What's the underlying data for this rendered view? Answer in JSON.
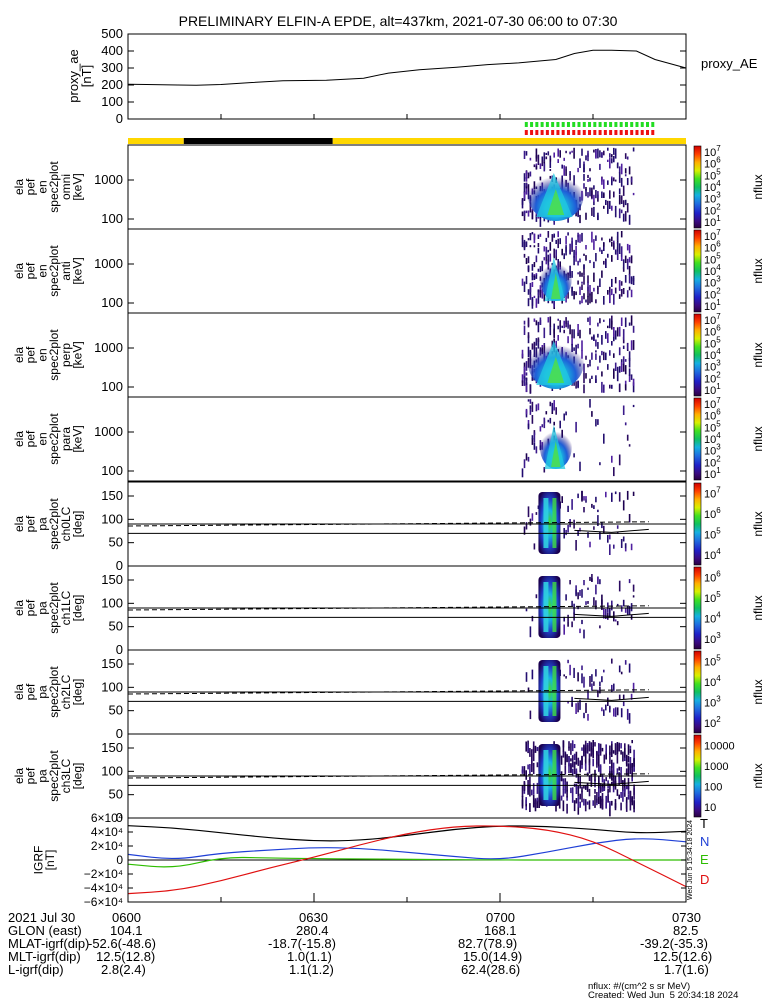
{
  "title": "PRELIMINARY ELFIN-A EPDE, alt=437km, 2021-07-30 06:00 to 07:30",
  "chart_data": [
    {
      "type": "line",
      "name": "proxy_ae panel",
      "ylabel_lines": [
        "proxy_ae",
        "[nT]"
      ],
      "ylim": [
        0,
        500
      ],
      "yticks": [
        "500",
        "400",
        "300",
        "200",
        "100",
        "0"
      ],
      "legend": "proxy_AE",
      "x_minutes": [
        0,
        3,
        8,
        11,
        15,
        20,
        25,
        32,
        38,
        42,
        47,
        53,
        58,
        63,
        69,
        72,
        75,
        78,
        82,
        85,
        90
      ],
      "values": [
        205,
        203,
        200,
        198,
        203,
        215,
        225,
        228,
        240,
        270,
        290,
        305,
        320,
        330,
        350,
        385,
        405,
        405,
        400,
        350,
        300
      ]
    },
    {
      "type": "bar",
      "name": "flag bar",
      "yellow_minutes": [
        [
          0,
          9
        ],
        [
          33,
          90
        ]
      ],
      "black_minutes": [
        [
          9,
          33
        ]
      ],
      "green_ticks_minutes": [
        64,
        84.5
      ],
      "red_ticks_minutes": [
        64,
        84.5
      ]
    },
    {
      "type": "heatmap",
      "name": "energy spectrogram panels",
      "ylabel_lines": [
        [
          "ela",
          "pef",
          "en",
          "spec2plot",
          "omni",
          "[keV]"
        ],
        [
          "ela",
          "pef",
          "en",
          "spec2plot",
          "anti",
          "[keV]"
        ],
        [
          "ela",
          "pef",
          "en",
          "spec2plot",
          "perp",
          "[keV]"
        ],
        [
          "ela",
          "pef",
          "en",
          "spec2plot",
          "para",
          "[keV]"
        ]
      ],
      "yticks": [
        "1000",
        "100"
      ],
      "y_scale": "log",
      "colorbar_label": "nflux",
      "colorbar_exponents": [
        "1",
        "2",
        "3",
        "4",
        "5",
        "6",
        "7"
      ],
      "colorbar_base": "10",
      "data_window_minutes": [
        63.5,
        81.5
      ]
    },
    {
      "type": "heatmap",
      "name": "pitch angle spectrogram panels",
      "ylabel_lines": [
        [
          "ela",
          "pef",
          "pa",
          "spec2plot",
          "ch0LC",
          "[deg]"
        ],
        [
          "ela",
          "pef",
          "pa",
          "spec2plot",
          "ch1LC",
          "[deg]"
        ],
        [
          "ela",
          "pef",
          "pa",
          "spec2plot",
          "ch2LC",
          "[deg]"
        ],
        [
          "ela",
          "pef",
          "pa",
          "spec2plot",
          "ch3LC",
          "[deg]"
        ]
      ],
      "yticks": [
        "150",
        "100",
        "50",
        "0"
      ],
      "ylim": [
        0,
        180
      ],
      "colorbar_label": "nflux",
      "colorbar_ticks": [
        [
          "10^4",
          "10^5",
          "10^6",
          "10^7"
        ],
        [
          "10^3",
          "10^4",
          "10^5",
          "10^6"
        ],
        [
          "10^2",
          "10^3",
          "10^4",
          "10^5"
        ],
        [
          "10",
          "100",
          "1000",
          "10000"
        ]
      ],
      "lc_lines_deg": [
        90,
        70
      ]
    },
    {
      "type": "line",
      "name": "IGRF panel",
      "ylabel_lines": [
        "IGRF",
        "[nT]"
      ],
      "ylim": [
        -60000,
        60000
      ],
      "yticks": [
        "6×10⁴",
        "4×10⁴",
        "2×10⁴",
        "0",
        "−2×10⁴",
        "−4×10⁴",
        "−6×10⁴"
      ],
      "x_minutes": [
        0,
        7.5,
        15,
        22.5,
        30,
        37.5,
        45,
        52.5,
        60,
        67.5,
        75,
        82.5,
        90
      ],
      "series": [
        {
          "name": "T",
          "color": "#000000",
          "values": [
            49000,
            46000,
            39000,
            32000,
            27000,
            28000,
            35000,
            44000,
            49000,
            48000,
            44000,
            38000,
            41000
          ]
        },
        {
          "name": "N",
          "color": "#1f3fd6",
          "values": [
            8000,
            0,
            10000,
            14000,
            18000,
            17000,
            11000,
            5000,
            0,
            11000,
            24000,
            32000,
            26000
          ]
        },
        {
          "name": "E",
          "color": "#2dbd00",
          "values": [
            -6000,
            -12000,
            4000,
            3000,
            2000,
            1500,
            1000,
            500,
            0,
            0,
            0,
            0,
            0
          ]
        },
        {
          "name": "D",
          "color": "#e01010",
          "values": [
            -48000,
            -44000,
            -30000,
            -12000,
            4000,
            22000,
            38000,
            48000,
            49000,
            44000,
            28000,
            -5000,
            -38000
          ]
        }
      ],
      "side_stamp": "Wed Jun  5 15:34:18 2024"
    }
  ],
  "footer": {
    "rows": [
      {
        "label": "2021 Jul 30",
        "values": [
          "0600",
          "0630",
          "0700",
          "0730"
        ]
      },
      {
        "label": "GLON (east)",
        "values": [
          "104.1",
          "280.4",
          "168.1",
          "82.5"
        ]
      },
      {
        "label": "MLAT-igrf(dip)",
        "values": [
          "-52.6(-48.6)",
          "-18.7(-15.8)",
          "82.7(78.9)",
          "-39.2(-35.3)"
        ]
      },
      {
        "label": "MLT-igrf(dip)",
        "values": [
          "12.5(12.8)",
          "1.0(1.1)",
          "15.0(14.9)",
          "12.5(12.6)"
        ]
      },
      {
        "label": "L-igrf(dip)",
        "values": [
          "2.8(2.4)",
          "1.1(1.2)",
          "62.4(28.6)",
          "1.7(1.6)"
        ]
      }
    ],
    "units_note": "nflux: #/(cm^2 s sr MeV)",
    "created": "Created: Wed Jun  5 20:34:18 2024"
  }
}
